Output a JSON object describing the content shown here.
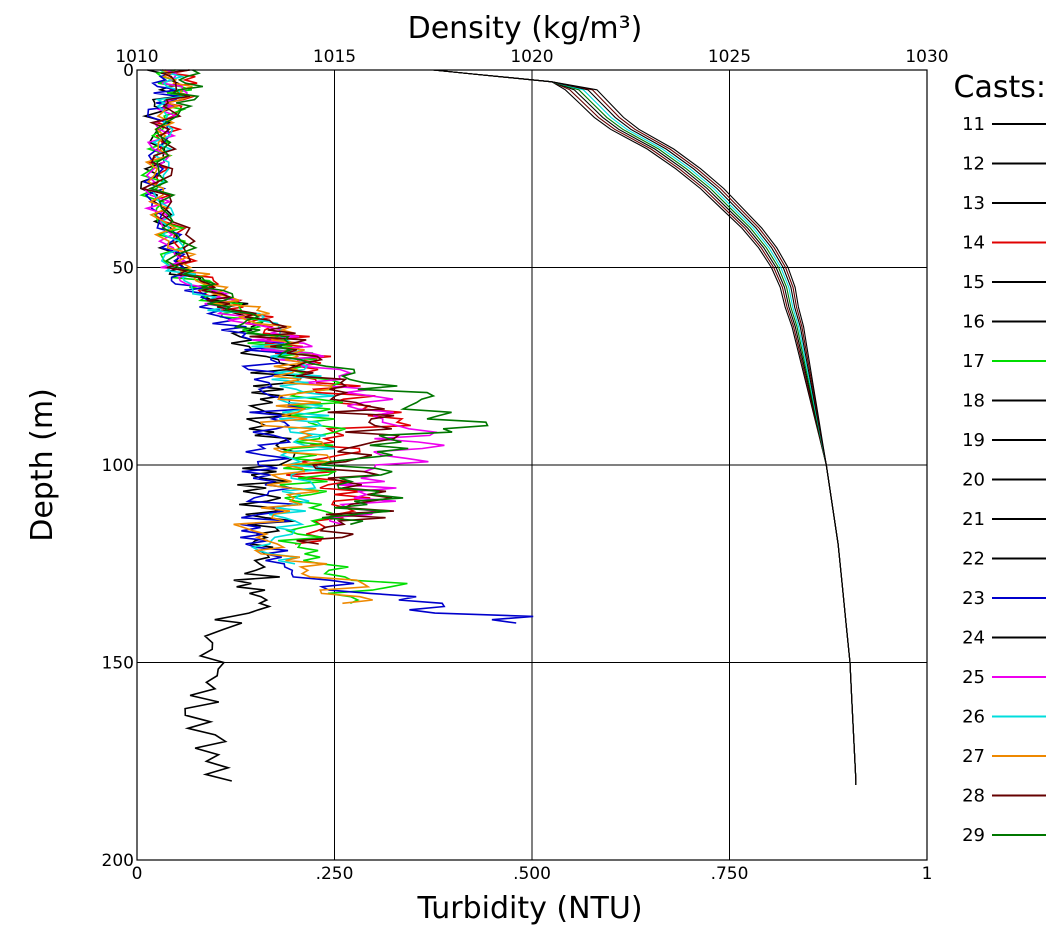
{
  "chart_data": {
    "type": "line",
    "title": "",
    "x_top_label": "Density (kg/m³)",
    "x_bottom_label": "Turbidity (NTU)",
    "y_label": "Depth (m)",
    "y_range": [
      0,
      200
    ],
    "y_inverted": true,
    "y_ticks": [
      "0",
      "50",
      "100",
      "150",
      "200"
    ],
    "x_top_range": [
      1010,
      1030
    ],
    "x_top_ticks": [
      "1010",
      "1015",
      "1020",
      "1025",
      "1030"
    ],
    "x_bottom_range": [
      0,
      1
    ],
    "x_bottom_ticks": [
      "0",
      ".250",
      ".500",
      ".750",
      "1"
    ],
    "grid": true,
    "legend": {
      "title": "Casts:",
      "position": "right",
      "items": [
        {
          "label": "11",
          "color": "#000000"
        },
        {
          "label": "12",
          "color": "#000000"
        },
        {
          "label": "13",
          "color": "#000000"
        },
        {
          "label": "14",
          "color": "#e00000"
        },
        {
          "label": "15",
          "color": "#000000"
        },
        {
          "label": "16",
          "color": "#000000"
        },
        {
          "label": "17",
          "color": "#00dd00"
        },
        {
          "label": "18",
          "color": "#000000"
        },
        {
          "label": "19",
          "color": "#000000"
        },
        {
          "label": "20",
          "color": "#000000"
        },
        {
          "label": "21",
          "color": "#000000"
        },
        {
          "label": "22",
          "color": "#000000"
        },
        {
          "label": "23",
          "color": "#0000cc"
        },
        {
          "label": "24",
          "color": "#000000"
        },
        {
          "label": "25",
          "color": "#ee00ee"
        },
        {
          "label": "26",
          "color": "#00dddd"
        },
        {
          "label": "27",
          "color": "#ee8800"
        },
        {
          "label": "28",
          "color": "#660000"
        },
        {
          "label": "29",
          "color": "#007700"
        }
      ]
    },
    "density_profile": {
      "axis": "top",
      "depth": [
        0,
        1,
        3,
        5,
        8,
        10,
        12,
        15,
        20,
        25,
        30,
        35,
        40,
        45,
        50,
        55,
        60,
        65,
        70,
        75,
        80,
        85,
        90,
        95,
        100,
        110,
        120,
        130,
        140,
        150,
        160,
        170,
        180,
        181
      ],
      "density": [
        1017.5,
        1018.5,
        1020.5,
        1021.3,
        1021.6,
        1021.8,
        1022.0,
        1022.4,
        1023.3,
        1024.0,
        1024.6,
        1025.1,
        1025.6,
        1026.0,
        1026.3,
        1026.5,
        1026.6,
        1026.75,
        1026.85,
        1026.95,
        1027.05,
        1027.15,
        1027.25,
        1027.35,
        1027.45,
        1027.6,
        1027.75,
        1027.85,
        1027.95,
        1028.05,
        1028.1,
        1028.15,
        1028.2,
        1028.2
      ]
    },
    "turbidity_profiles": {
      "axis": "bottom",
      "depth": [
        0,
        5,
        10,
        20,
        30,
        40,
        50,
        55,
        60,
        65,
        70,
        75,
        80,
        85,
        90,
        95,
        100,
        105,
        110,
        115,
        120,
        125,
        130,
        135,
        140,
        150,
        160,
        170,
        180
      ],
      "series": [
        {
          "name": "11",
          "color": "#000000",
          "values": [
            0.03,
            0.04,
            0.03,
            0.02,
            0.015,
            0.04,
            0.05,
            0.08,
            0.12,
            0.15,
            0.14,
            0.17,
            0.18,
            0.17,
            0.16,
            0.17,
            0.17,
            0.16,
            0.16,
            0.17,
            0.15,
            0.16,
            0.15,
            0.14,
            0.12,
            0.1,
            0.08,
            0.09,
            0.12
          ]
        },
        {
          "name": "14",
          "color": "#e00000",
          "values": [
            0.05,
            0.06,
            0.04,
            0.03,
            0.025,
            0.05,
            0.06,
            0.09,
            0.13,
            0.17,
            0.2,
            0.22,
            0.25,
            0.28,
            0.3,
            0.25,
            0.22,
            0.24,
            0.26,
            0.24,
            0.2
          ]
        },
        {
          "name": "17",
          "color": "#00dd00",
          "values": [
            0.04,
            0.05,
            0.04,
            0.03,
            0.02,
            0.04,
            0.05,
            0.08,
            0.11,
            0.15,
            0.18,
            0.2,
            0.23,
            0.22,
            0.24,
            0.23,
            0.21,
            0.22,
            0.22,
            0.21,
            0.2,
            0.23,
            0.3,
            0.27
          ]
        },
        {
          "name": "23",
          "color": "#0000cc",
          "values": [
            0.03,
            0.04,
            0.03,
            0.02,
            0.02,
            0.04,
            0.05,
            0.07,
            0.1,
            0.13,
            0.16,
            0.17,
            0.17,
            0.18,
            0.17,
            0.17,
            0.16,
            0.16,
            0.17,
            0.16,
            0.16,
            0.18,
            0.26,
            0.36,
            0.48
          ]
        },
        {
          "name": "25",
          "color": "#ee00ee",
          "values": [
            0.04,
            0.05,
            0.04,
            0.03,
            0.02,
            0.04,
            0.05,
            0.08,
            0.12,
            0.15,
            0.19,
            0.22,
            0.26,
            0.3,
            0.36,
            0.35,
            0.32,
            0.3,
            0.28,
            0.26
          ]
        },
        {
          "name": "26",
          "color": "#00dddd",
          "values": [
            0.04,
            0.05,
            0.04,
            0.03,
            0.02,
            0.04,
            0.05,
            0.08,
            0.11,
            0.16,
            0.18,
            0.2,
            0.21,
            0.22,
            0.22,
            0.22,
            0.21,
            0.22,
            0.19,
            0.19,
            0.18,
            0.2
          ]
        },
        {
          "name": "27",
          "color": "#ee8800",
          "values": [
            0.05,
            0.06,
            0.04,
            0.03,
            0.025,
            0.04,
            0.06,
            0.09,
            0.13,
            0.17,
            0.19,
            0.21,
            0.21,
            0.2,
            0.19,
            0.2,
            0.21,
            0.2,
            0.18,
            0.15,
            0.15,
            0.22,
            0.25,
            0.26
          ]
        },
        {
          "name": "28",
          "color": "#660000",
          "values": [
            0.05,
            0.06,
            0.04,
            0.03,
            0.025,
            0.05,
            0.06,
            0.09,
            0.12,
            0.16,
            0.19,
            0.21,
            0.24,
            0.27,
            0.3,
            0.28,
            0.26,
            0.28,
            0.3,
            0.27,
            0.23
          ]
        },
        {
          "name": "29",
          "color": "#007700",
          "values": [
            0.06,
            0.07,
            0.05,
            0.03,
            0.025,
            0.05,
            0.06,
            0.09,
            0.12,
            0.16,
            0.19,
            0.22,
            0.32,
            0.38,
            0.39,
            0.34,
            0.28,
            0.3,
            0.29,
            0.27
          ]
        }
      ]
    }
  }
}
